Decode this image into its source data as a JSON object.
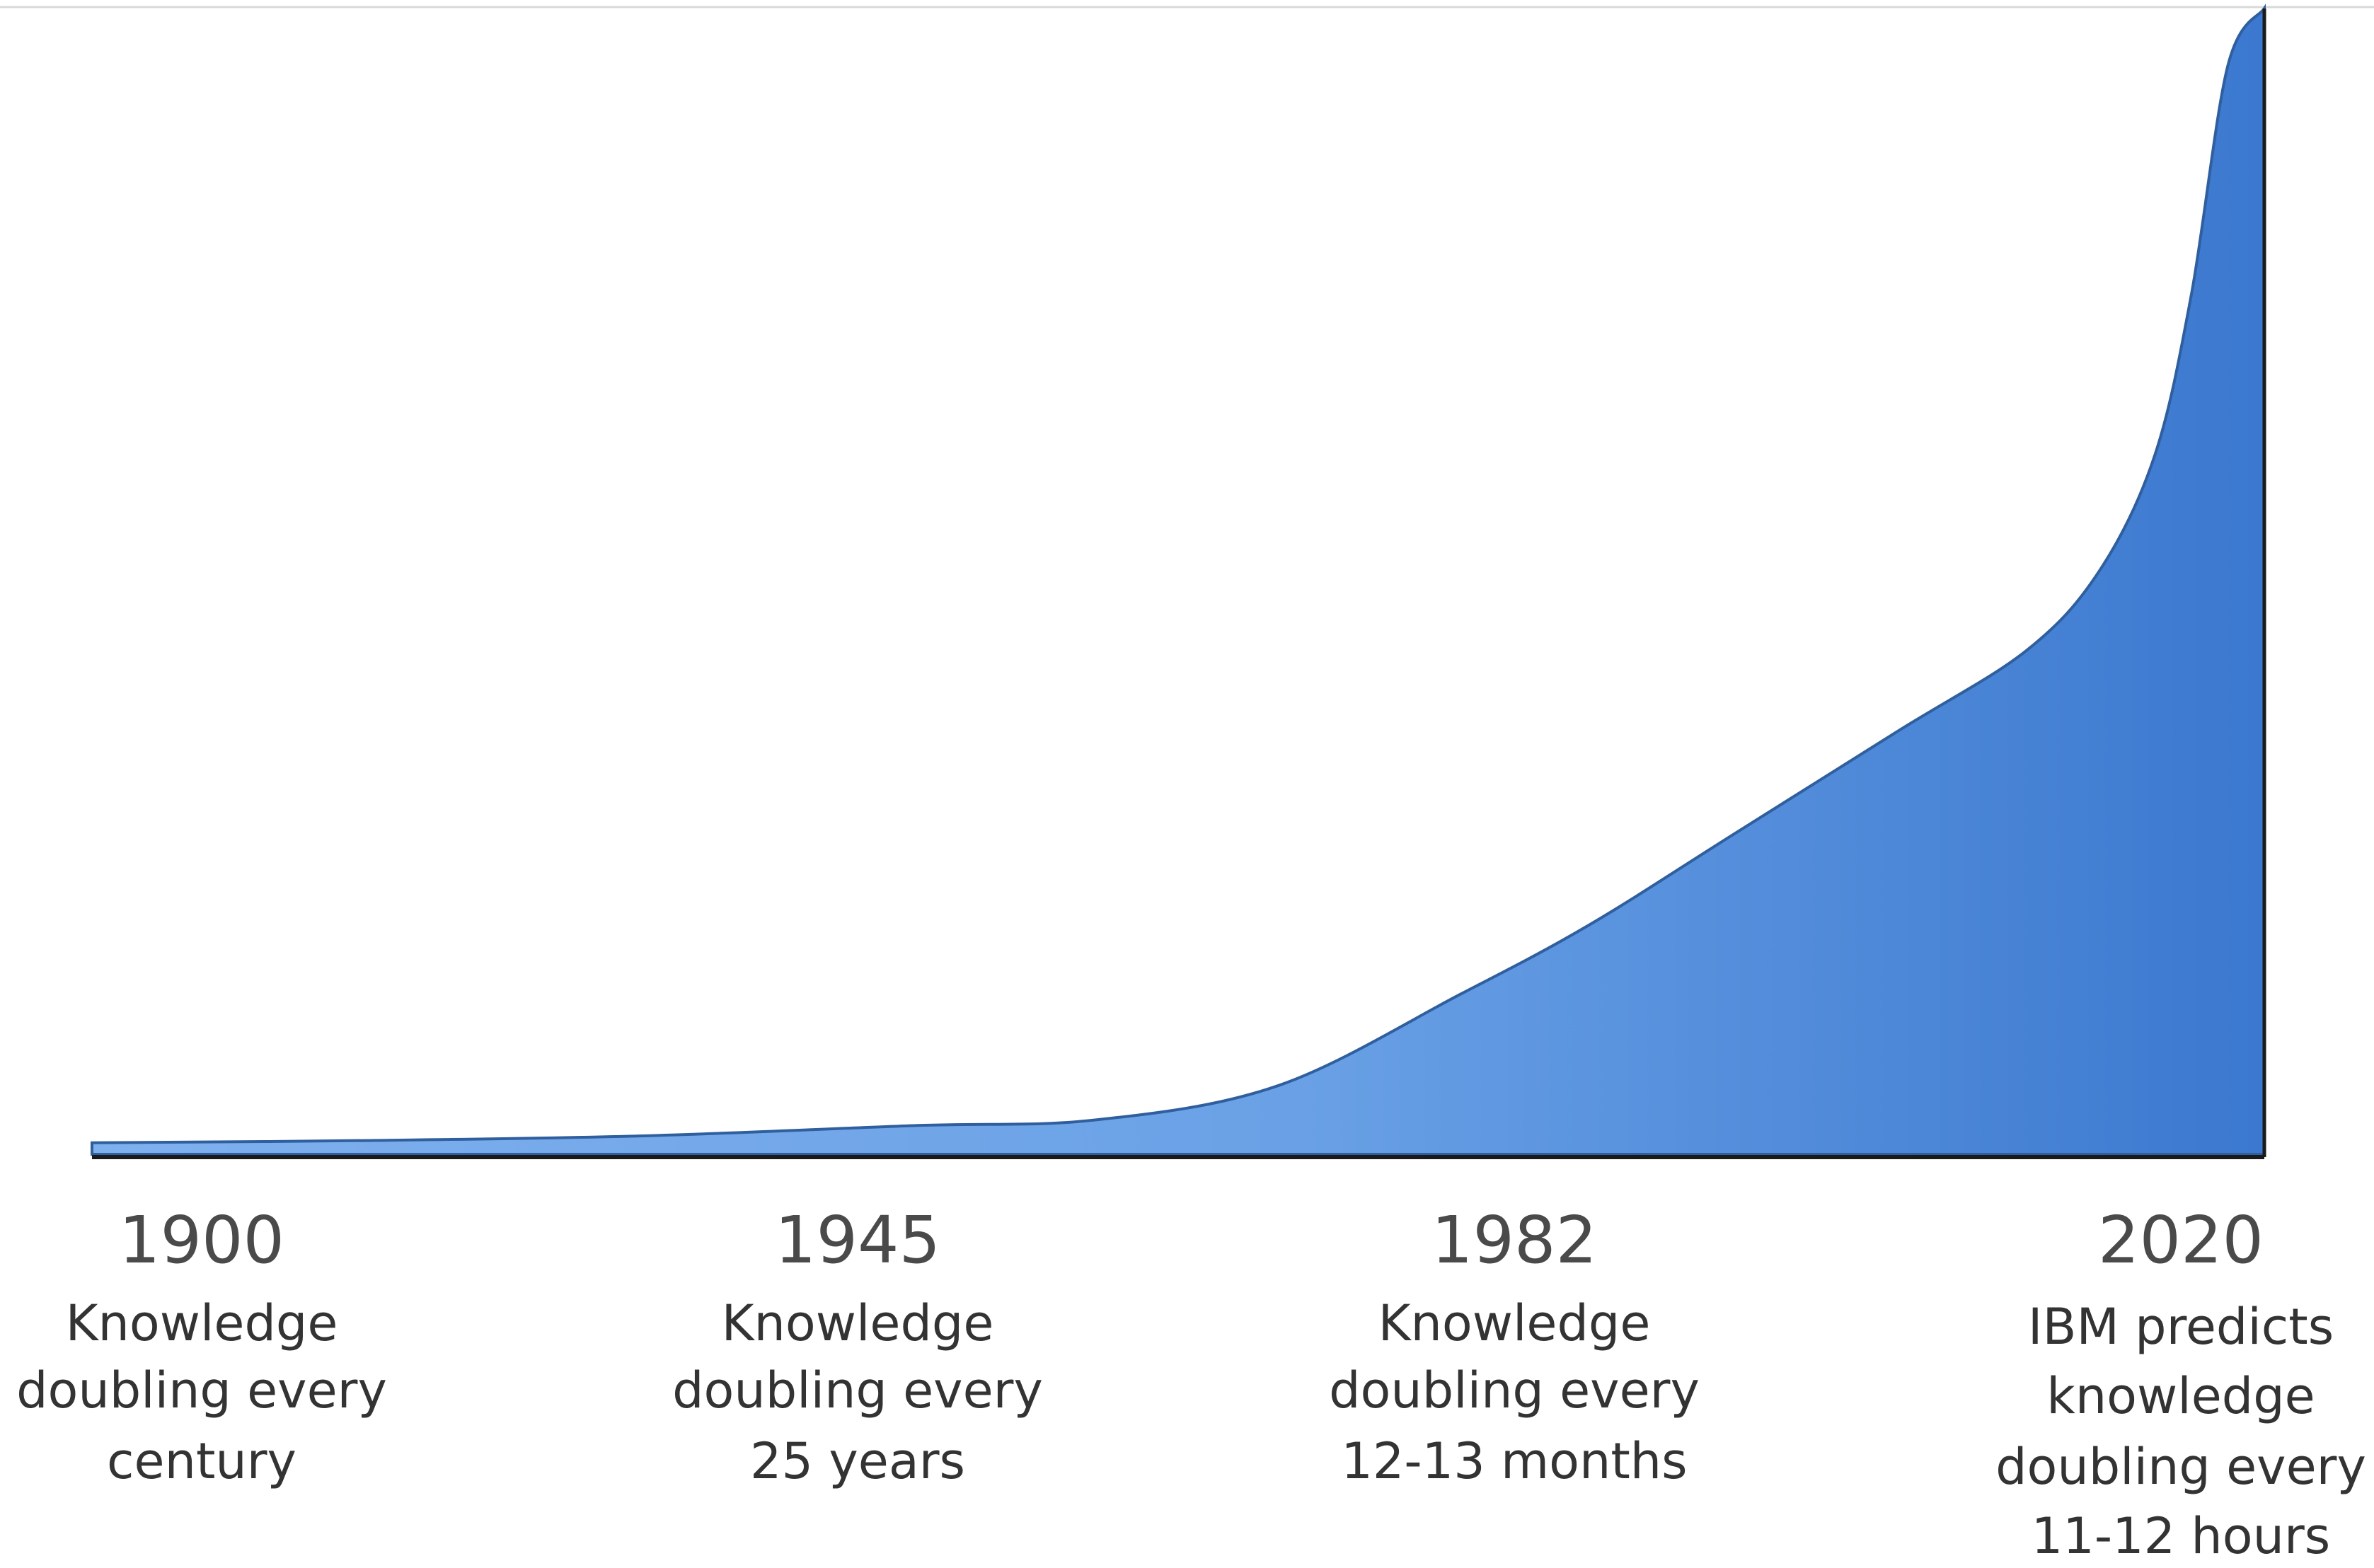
{
  "chart_data": {
    "type": "area",
    "x": [
      1900,
      1945,
      1982,
      2020
    ],
    "categories": [
      "1900",
      "1945",
      "1982",
      "2020"
    ],
    "tick_descriptions": [
      [
        "Knowledge",
        "doubling every",
        "century"
      ],
      [
        "Knowledge",
        "doubling every",
        "25 years"
      ],
      [
        "Knowledge",
        "doubling every",
        "12-13 months"
      ],
      [
        "IBM predicts",
        "knowledge",
        "doubling every",
        "11-12 hours"
      ]
    ],
    "relative_values": [
      [
        1900,
        0.01
      ],
      [
        1915,
        0.012
      ],
      [
        1930,
        0.016
      ],
      [
        1945,
        0.025
      ],
      [
        1955,
        0.03
      ],
      [
        1965,
        0.06
      ],
      [
        1975,
        0.14
      ],
      [
        1982,
        0.2
      ],
      [
        1990,
        0.28
      ],
      [
        1999,
        0.37
      ],
      [
        2006,
        0.44
      ],
      [
        2010,
        0.51
      ],
      [
        2013,
        0.61
      ],
      [
        2015,
        0.75
      ],
      [
        2017,
        0.95
      ],
      [
        2019,
        1.0
      ]
    ],
    "ylim": [
      0,
      1
    ],
    "xlim": [
      1900,
      2019
    ],
    "grid": false,
    "legend": "none",
    "title": "",
    "xlabel": "",
    "ylabel": "",
    "colors": {
      "fill_light": "#7fb0ee",
      "fill_dark": "#3b78cf",
      "edge": "#2f5f9e",
      "axis": "#1a1a1a",
      "top_line": "#d9d9d9"
    }
  }
}
